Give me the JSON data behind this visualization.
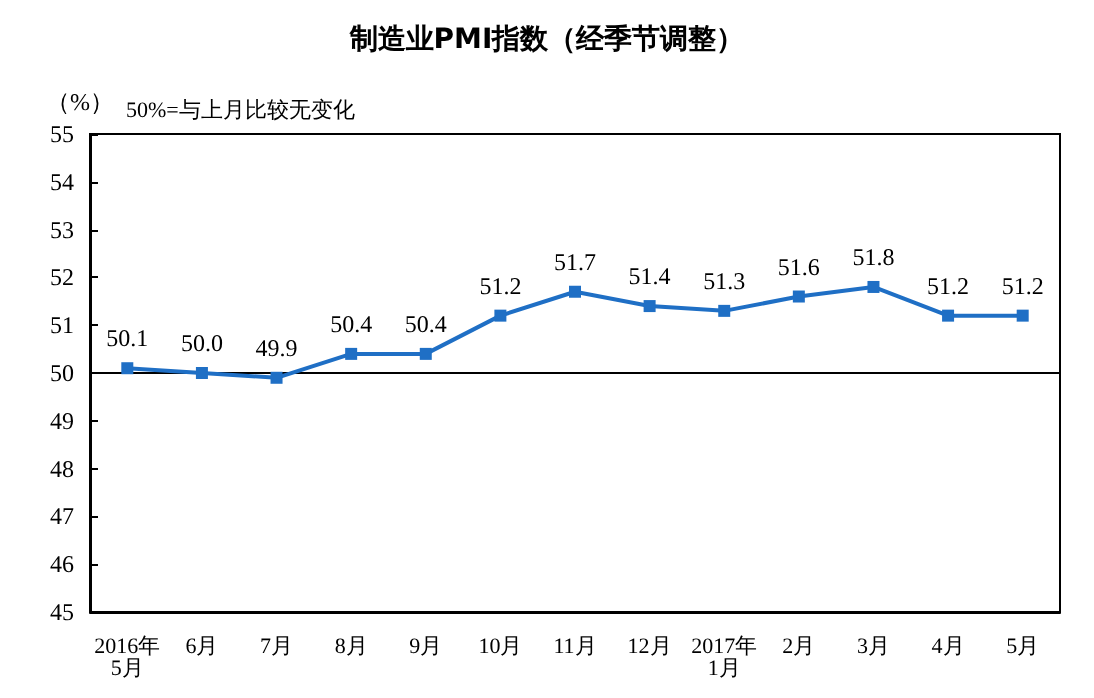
{
  "chart_data": {
    "type": "line",
    "title": "制造业PMI指数（经季节调整）",
    "ylabel": "（%）",
    "annotations": [
      "50%=与上月比较无变化"
    ],
    "categories": [
      "2016年\n5月",
      "6月",
      "7月",
      "8月",
      "9月",
      "10月",
      "11月",
      "12月",
      "2017年\n1月",
      "2月",
      "3月",
      "4月",
      "5月"
    ],
    "series": [
      {
        "color": "#1f6fc5",
        "values": [
          50.1,
          50.0,
          49.9,
          50.4,
          50.4,
          51.2,
          51.7,
          51.4,
          51.3,
          51.6,
          51.8,
          51.2,
          51.2
        ],
        "value_labels": [
          "50.1",
          "50.0",
          "49.9",
          "50.4",
          "50.4",
          "51.2",
          "51.7",
          "51.4",
          "51.3",
          "51.6",
          "51.8",
          "51.2",
          "51.2"
        ]
      }
    ],
    "ylim": [
      45,
      55
    ],
    "yticks": [
      45,
      46,
      47,
      48,
      49,
      50,
      51,
      52,
      53,
      54,
      55
    ],
    "ref_lines": [
      {
        "axis": "y",
        "value": 50,
        "color": "#000000"
      }
    ],
    "marker": "square",
    "line_style": "solid",
    "grid": false
  }
}
